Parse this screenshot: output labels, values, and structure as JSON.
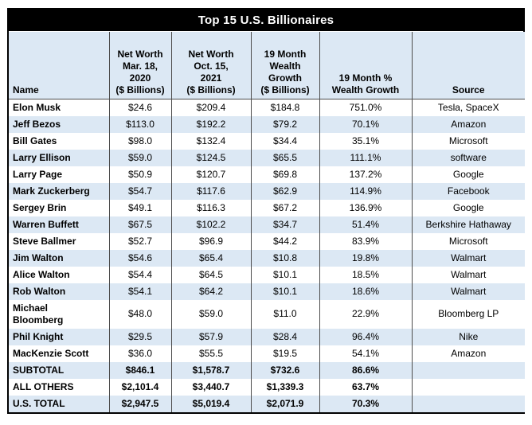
{
  "title": "Top 15 U.S. Billionaires",
  "colors": {
    "title_bg": "#000000",
    "title_text": "#ffffff",
    "header_bg": "#dce8f4",
    "stripe_bg": "#dce8f4",
    "row_bg": "#ffffff",
    "grid": "#4d4d4d",
    "outer_border": "#000000",
    "text": "#000000"
  },
  "table": {
    "columns": [
      {
        "label": "Name"
      },
      {
        "label": "Net Worth\nMar. 18,\n2020\n($ Billions)"
      },
      {
        "label": "Net Worth\nOct. 15,\n2021\n($ Billions)"
      },
      {
        "label": "19 Month\nWealth\nGrowth\n($ Billions)"
      },
      {
        "label": "19 Month %\nWealth Growth"
      },
      {
        "label": "Source"
      }
    ],
    "rows": [
      {
        "name": "Elon Musk",
        "worth_2020": "$24.6",
        "worth_2021": "$209.4",
        "growth": "$184.8",
        "growth_pct": "751.0%",
        "source": "Tesla, SpaceX",
        "is_total": false
      },
      {
        "name": "Jeff Bezos",
        "worth_2020": "$113.0",
        "worth_2021": "$192.2",
        "growth": "$79.2",
        "growth_pct": "70.1%",
        "source": "Amazon",
        "is_total": false
      },
      {
        "name": "Bill Gates",
        "worth_2020": "$98.0",
        "worth_2021": "$132.4",
        "growth": "$34.4",
        "growth_pct": "35.1%",
        "source": "Microsoft",
        "is_total": false
      },
      {
        "name": "Larry Ellison",
        "worth_2020": "$59.0",
        "worth_2021": "$124.5",
        "growth": "$65.5",
        "growth_pct": "111.1%",
        "source": "software",
        "is_total": false
      },
      {
        "name": "Larry Page",
        "worth_2020": "$50.9",
        "worth_2021": "$120.7",
        "growth": "$69.8",
        "growth_pct": "137.2%",
        "source": "Google",
        "is_total": false
      },
      {
        "name": "Mark Zuckerberg",
        "worth_2020": "$54.7",
        "worth_2021": "$117.6",
        "growth": "$62.9",
        "growth_pct": "114.9%",
        "source": "Facebook",
        "is_total": false
      },
      {
        "name": "Sergey Brin",
        "worth_2020": "$49.1",
        "worth_2021": "$116.3",
        "growth": "$67.2",
        "growth_pct": "136.9%",
        "source": "Google",
        "is_total": false
      },
      {
        "name": "Warren Buffett",
        "worth_2020": "$67.5",
        "worth_2021": "$102.2",
        "growth": "$34.7",
        "growth_pct": "51.4%",
        "source": "Berkshire Hathaway",
        "is_total": false
      },
      {
        "name": "Steve Ballmer",
        "worth_2020": "$52.7",
        "worth_2021": "$96.9",
        "growth": "$44.2",
        "growth_pct": "83.9%",
        "source": "Microsoft",
        "is_total": false
      },
      {
        "name": "Jim Walton",
        "worth_2020": "$54.6",
        "worth_2021": "$65.4",
        "growth": "$10.8",
        "growth_pct": "19.8%",
        "source": "Walmart",
        "is_total": false
      },
      {
        "name": "Alice Walton",
        "worth_2020": "$54.4",
        "worth_2021": "$64.5",
        "growth": "$10.1",
        "growth_pct": "18.5%",
        "source": "Walmart",
        "is_total": false
      },
      {
        "name": "Rob Walton",
        "worth_2020": "$54.1",
        "worth_2021": "$64.2",
        "growth": "$10.1",
        "growth_pct": "18.6%",
        "source": "Walmart",
        "is_total": false
      },
      {
        "name": "Michael\nBloomberg",
        "worth_2020": "$48.0",
        "worth_2021": "$59.0",
        "growth": "$11.0",
        "growth_pct": "22.9%",
        "source": "Bloomberg LP",
        "is_total": false
      },
      {
        "name": "Phil Knight",
        "worth_2020": "$29.5",
        "worth_2021": "$57.9",
        "growth": "$28.4",
        "growth_pct": "96.4%",
        "source": "Nike",
        "is_total": false
      },
      {
        "name": "MacKenzie Scott",
        "worth_2020": "$36.0",
        "worth_2021": "$55.5",
        "growth": "$19.5",
        "growth_pct": "54.1%",
        "source": "Amazon",
        "is_total": false
      },
      {
        "name": "SUBTOTAL",
        "worth_2020": "$846.1",
        "worth_2021": "$1,578.7",
        "growth": "$732.6",
        "growth_pct": "86.6%",
        "source": "",
        "is_total": true
      },
      {
        "name": "ALL OTHERS",
        "worth_2020": "$2,101.4",
        "worth_2021": "$3,440.7",
        "growth": "$1,339.3",
        "growth_pct": "63.7%",
        "source": "",
        "is_total": true
      },
      {
        "name": "U.S. TOTAL",
        "worth_2020": "$2,947.5",
        "worth_2021": "$5,019.4",
        "growth": "$2,071.9",
        "growth_pct": "70.3%",
        "source": "",
        "is_total": true
      }
    ]
  }
}
